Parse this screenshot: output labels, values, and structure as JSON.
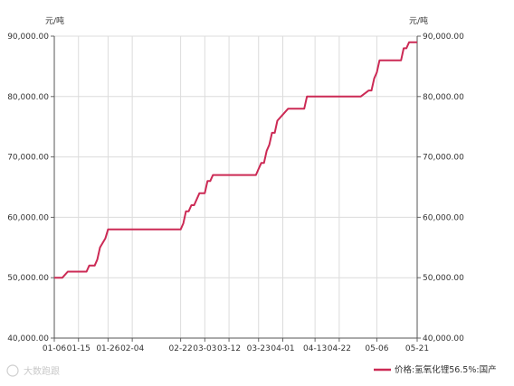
{
  "chart_data": {
    "type": "line",
    "y_unit_left": "元/吨",
    "y_unit_right": "元/吨",
    "ylim": [
      40000,
      90000
    ],
    "y_ticks": [
      "40,000.00",
      "50,000.00",
      "60,000.00",
      "70,000.00",
      "80,000.00",
      "90,000.00"
    ],
    "x_ticks": [
      "01-06",
      "01-15",
      "01-26",
      "02-04",
      "02-22",
      "03-03",
      "03-12",
      "03-23",
      "04-01",
      "04-13",
      "04-22",
      "05-06",
      "05-21"
    ],
    "grid": true,
    "legend_position": "bottom-right",
    "series": [
      {
        "name": "价格:氢氧化锂56.5%:国产",
        "color": "#cc2a55",
        "x": [
          "01-06",
          "01-08",
          "01-09",
          "01-11",
          "01-15",
          "01-18",
          "01-19",
          "01-21",
          "01-22",
          "01-23",
          "01-25",
          "01-26",
          "02-22",
          "02-23",
          "02-24",
          "02-25",
          "02-26",
          "02-27",
          "03-01",
          "03-02",
          "03-03",
          "03-04",
          "03-05",
          "03-06",
          "03-22",
          "03-23",
          "03-24",
          "03-25",
          "03-26",
          "03-27",
          "03-28",
          "03-29",
          "03-30",
          "04-01",
          "04-03",
          "04-08",
          "04-09",
          "04-10",
          "04-30",
          "05-03",
          "05-04",
          "05-05",
          "05-06",
          "05-07",
          "05-08",
          "05-15",
          "05-16",
          "05-17",
          "05-18",
          "05-19",
          "05-21"
        ],
        "values": [
          50000,
          50000,
          50000,
          51000,
          51000,
          51000,
          52000,
          52000,
          53000,
          55000,
          56500,
          58000,
          58000,
          59000,
          61000,
          61000,
          62000,
          62000,
          64000,
          64000,
          64000,
          66000,
          66000,
          67000,
          67000,
          68000,
          69000,
          69000,
          71000,
          72000,
          74000,
          74000,
          76000,
          77000,
          78000,
          78000,
          78000,
          80000,
          80000,
          81000,
          81000,
          83000,
          84000,
          86000,
          86000,
          86000,
          88000,
          88000,
          89000,
          89000,
          89000
        ]
      }
    ],
    "watermark": "大数跑跟"
  }
}
